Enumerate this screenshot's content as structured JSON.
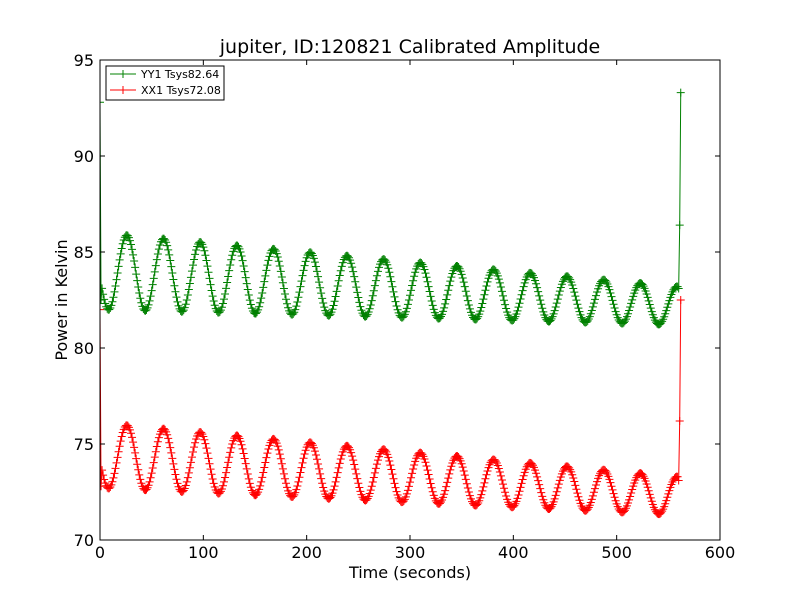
{
  "chart_data": {
    "type": "line",
    "title": "jupiter, ID:120821 Calibrated Amplitude",
    "xlabel": "Time (seconds)",
    "ylabel": "Power in Kelvin",
    "xlim": [
      0,
      600
    ],
    "ylim": [
      70,
      95
    ],
    "xticks": [
      0,
      100,
      200,
      300,
      400,
      500,
      600
    ],
    "yticks": [
      70,
      75,
      80,
      85,
      90,
      95
    ],
    "grid": false,
    "legend_position": "top-left",
    "marker": "plus",
    "series": [
      {
        "name": "YY1 Tsys82.64",
        "color": "#008000",
        "baseline_start": 84.0,
        "baseline_end": 82.2,
        "amplitude_start": 2.0,
        "amplitude_end": 1.0,
        "period": 35.5,
        "first_peak": 26,
        "x_start": 2,
        "x_end": 559,
        "step": 1,
        "lead_points": [
          [
            0,
            92.8
          ],
          [
            1,
            82.5
          ]
        ],
        "tail_points": [
          [
            560,
            83.1
          ],
          [
            561,
            86.4
          ],
          [
            562,
            93.3
          ]
        ]
      },
      {
        "name": "XX1 Tsys72.08",
        "color": "#ff0000",
        "baseline_start": 74.4,
        "baseline_end": 72.3,
        "amplitude_start": 1.7,
        "amplitude_end": 1.0,
        "period": 35.5,
        "first_peak": 26,
        "x_start": 2,
        "x_end": 559,
        "step": 1,
        "lead_points": [
          [
            0,
            82.0
          ],
          [
            1,
            72.8
          ]
        ],
        "tail_points": [
          [
            560,
            73.1
          ],
          [
            561,
            76.2
          ],
          [
            562,
            82.5
          ]
        ]
      }
    ]
  }
}
